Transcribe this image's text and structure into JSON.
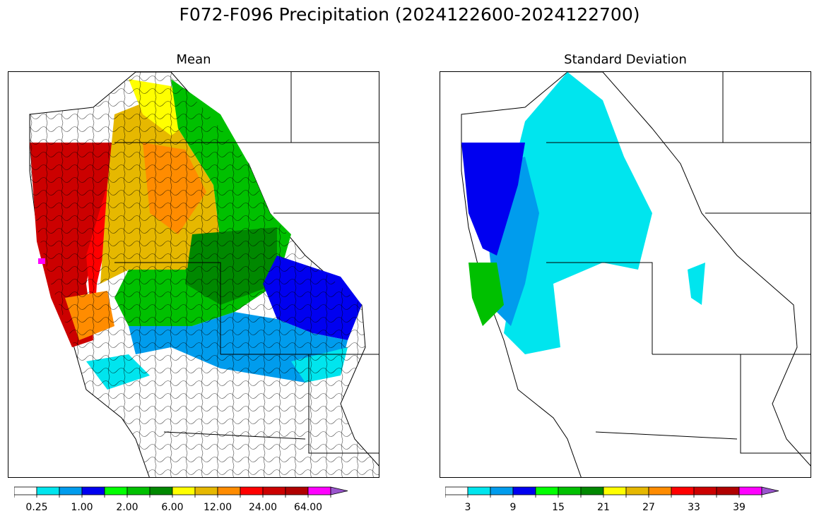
{
  "title": "F072-F096 Precipitation (2024122600-2024122700)",
  "panels": [
    {
      "id": "mean",
      "title": "Mean",
      "colorbar": {
        "colors": [
          "#ffffff",
          "#00e5ee",
          "#009ced",
          "#0000f0",
          "#00ff00",
          "#00c000",
          "#008800",
          "#ffff00",
          "#e6b800",
          "#ff8c00",
          "#ff0000",
          "#cc0000",
          "#b00000",
          "#ff00ff",
          "#9955cc"
        ],
        "tick_labels": [
          "0.25",
          "1.00",
          "2.00",
          "6.00",
          "12.00",
          "24.00",
          "64.00"
        ],
        "extend": "max"
      }
    },
    {
      "id": "stddev",
      "title": "Standard Deviation",
      "colorbar": {
        "colors": [
          "#ffffff",
          "#00e5ee",
          "#009ced",
          "#0000f0",
          "#00ff00",
          "#00c000",
          "#008800",
          "#ffff00",
          "#e6b800",
          "#ff8c00",
          "#ff0000",
          "#cc0000",
          "#b00000",
          "#ff00ff",
          "#9955cc"
        ],
        "tick_labels": [
          "3",
          "9",
          "15",
          "21",
          "27",
          "33",
          "39"
        ],
        "extend": "max"
      }
    }
  ]
}
